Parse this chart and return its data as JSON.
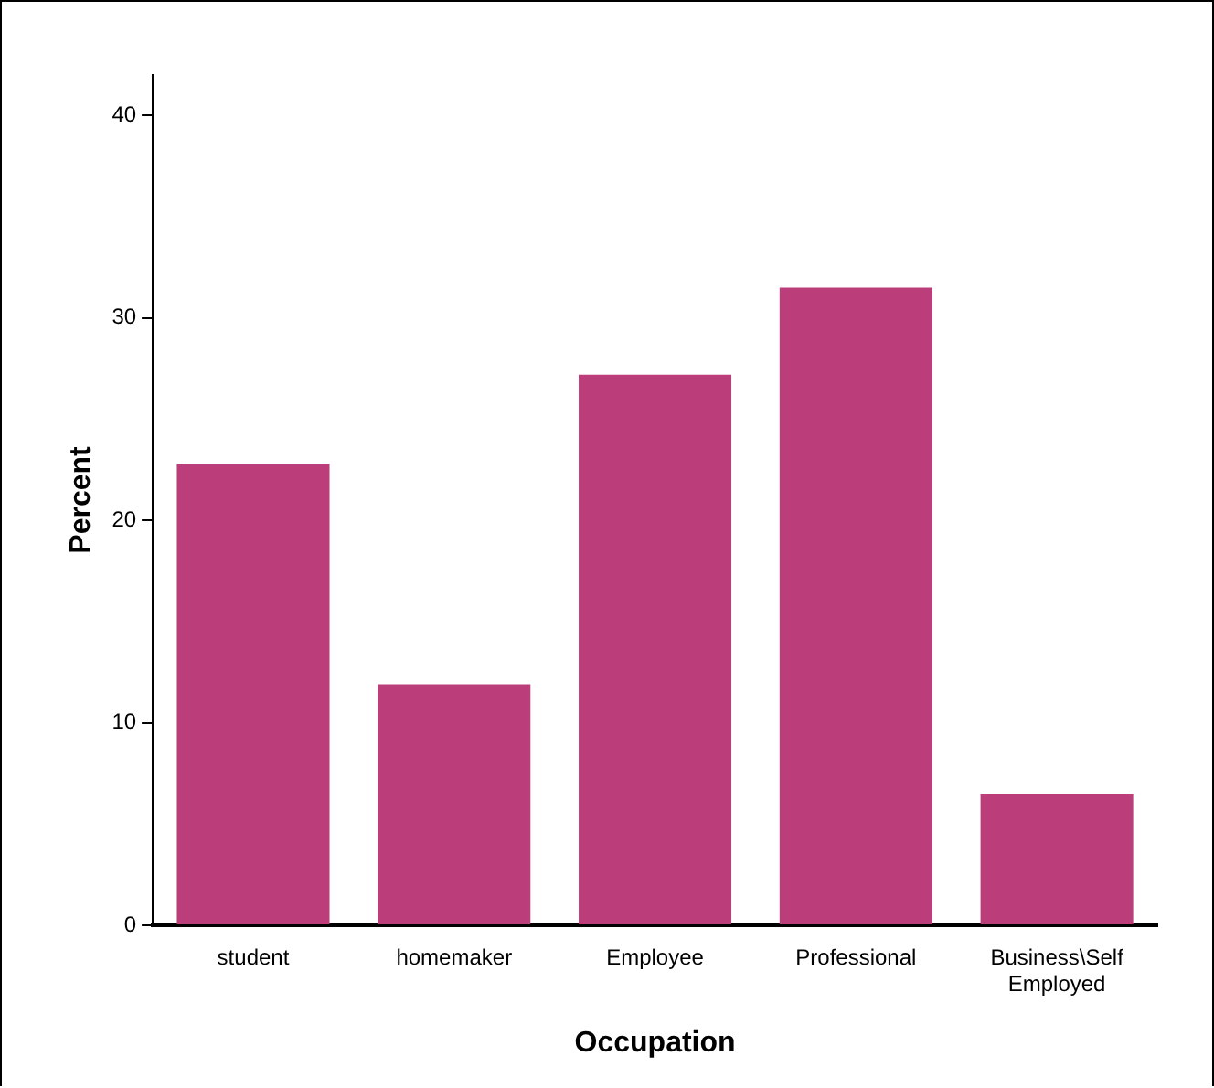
{
  "chart_data": {
    "type": "bar",
    "xlabel": "Occupation",
    "ylabel": "Percent",
    "categories": [
      "student",
      "homemaker",
      "Employee",
      "Professional",
      "Business\\Self Employed"
    ],
    "values": [
      22.8,
      11.9,
      27.2,
      31.5,
      6.5
    ],
    "color": "#bb3e7b",
    "ylim": [
      0,
      42
    ],
    "yticks": [
      0,
      10,
      20,
      30,
      40
    ],
    "grid": false,
    "legend": false
  }
}
